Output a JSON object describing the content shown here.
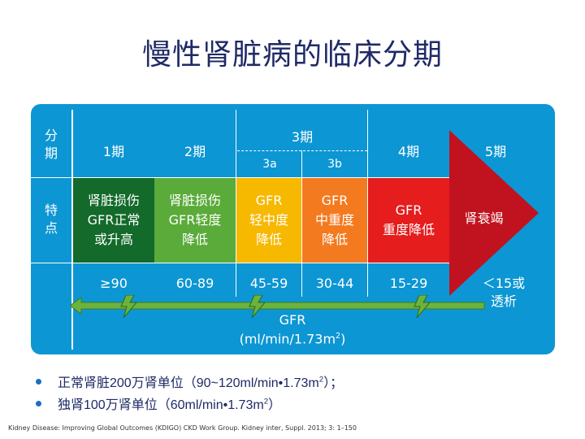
{
  "title": "慢性肾脏病的临床分期",
  "table": {
    "row_header_stage": "分\n期",
    "row_header_feature": "特\n点",
    "stages": [
      "1期",
      "2期",
      "3期",
      "4期",
      "5期"
    ],
    "substages": [
      "3a",
      "3b"
    ],
    "features": [
      "肾脏损伤\nGFR正常\n或升高",
      "肾脏损伤\nGFR轻度\n降低",
      "GFR\n轻中度\n降低",
      "GFR\n中重度\n降低",
      "GFR\n重度降低",
      "肾衰竭"
    ],
    "gfr_ranges": [
      "≥90",
      "60-89",
      "45-59",
      "30-44",
      "15-29",
      "＜15或\n透析"
    ],
    "axis_label": "GFR",
    "axis_unit_base": "(ml/min/1.73m",
    "axis_unit_sup": "2",
    "axis_unit_close": ")"
  },
  "colors": {
    "panel": "#0c96d3",
    "stage1": "#136a2b",
    "stage2": "#5aab3a",
    "stage3a": "#f7b800",
    "stage3b": "#f47a1f",
    "stage4": "#e51d1d",
    "stage5": "#c1121f",
    "arrow": "#6cb33e"
  },
  "bullets": [
    {
      "text": "正常肾脏200万肾单位（90~120ml/min•1.73m",
      "sup": "2",
      "tail": "）；"
    },
    {
      "text": "独肾100万肾单位（60ml/min•1.73m",
      "sup": "2",
      "tail": "）"
    }
  ],
  "citation": "Kidney Disease: Improving Global Outcomes (KDIGO) CKD Work Group. Kidney inter, Suppl. 2013; 3: 1–150"
}
